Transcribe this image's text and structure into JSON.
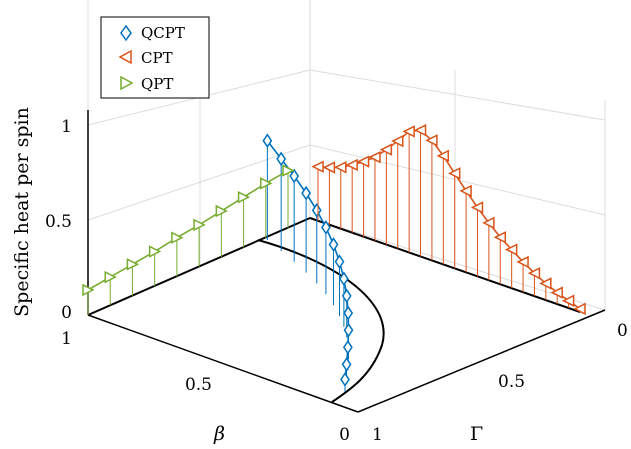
{
  "chart_data": {
    "type": "line",
    "projection": "3d",
    "axes": {
      "beta": {
        "label": "β",
        "ticks": [
          "0",
          "0.5",
          "1"
        ],
        "range": [
          0,
          1
        ]
      },
      "gamma": {
        "label": "Γ",
        "ticks": [
          "0",
          "0.5",
          "1"
        ],
        "range": [
          0,
          1
        ]
      },
      "z": {
        "label": "Specific heat per spin",
        "ticks": [
          "0",
          "0.5",
          "1"
        ],
        "range": [
          0,
          1.25
        ]
      }
    },
    "grid": true,
    "legend_placement": "top-left",
    "legend": [
      "QCPT",
      "CPT",
      "QPT"
    ],
    "series": [
      {
        "name": "QCPT",
        "color": "#0072BD",
        "marker": "diamond",
        "points": [
          {
            "x": 1.14,
            "y": 0.12
          },
          {
            "x": 1.16,
            "y": 0.16
          },
          {
            "x": 1.19,
            "y": 0.22
          },
          {
            "x": 1.21,
            "y": 0.28
          },
          {
            "x": 1.22,
            "y": 0.34
          },
          {
            "x": 1.22,
            "y": 0.4
          },
          {
            "x": 1.21,
            "y": 0.46
          },
          {
            "x": 1.19,
            "y": 0.52
          },
          {
            "x": 1.17,
            "y": 0.58
          },
          {
            "x": 1.13,
            "y": 0.64
          },
          {
            "x": 1.09,
            "y": 0.7
          },
          {
            "x": 1.05,
            "y": 0.76
          },
          {
            "x": 1.0,
            "y": 0.82
          },
          {
            "x": 0.95,
            "y": 0.88
          },
          {
            "x": 0.89,
            "y": 0.95
          }
        ]
      },
      {
        "name": "CPT",
        "color": "#D95319",
        "marker": "triangle-left",
        "points": [
          {
            "x": 0.02,
            "y": 0.03
          },
          {
            "x": 0.04,
            "y": 0.07
          },
          {
            "x": 0.06,
            "y": 0.11
          },
          {
            "x": 0.08,
            "y": 0.16
          },
          {
            "x": 0.1,
            "y": 0.22
          },
          {
            "x": 0.12,
            "y": 0.29
          },
          {
            "x": 0.14,
            "y": 0.37
          },
          {
            "x": 0.16,
            "y": 0.45
          },
          {
            "x": 0.18,
            "y": 0.55
          },
          {
            "x": 0.2,
            "y": 0.66
          },
          {
            "x": 0.22,
            "y": 0.78
          },
          {
            "x": 0.24,
            "y": 0.91
          },
          {
            "x": 0.26,
            "y": 1.04
          },
          {
            "x": 0.28,
            "y": 1.15
          },
          {
            "x": 0.3,
            "y": 1.21
          },
          {
            "x": 0.32,
            "y": 1.16
          },
          {
            "x": 0.34,
            "y": 1.03
          },
          {
            "x": 0.36,
            "y": 0.91
          },
          {
            "x": 0.38,
            "y": 0.8
          },
          {
            "x": 0.4,
            "y": 0.72
          },
          {
            "x": 0.42,
            "y": 0.65
          },
          {
            "x": 0.44,
            "y": 0.59
          },
          {
            "x": 0.46,
            "y": 0.55
          },
          {
            "x": 0.48,
            "y": 0.52
          }
        ]
      },
      {
        "name": "QPT",
        "color": "#77AC30",
        "marker": "triangle-right",
        "points": [
          {
            "x": 1.0,
            "y": 0.24
          },
          {
            "x": 0.9,
            "y": 0.27
          },
          {
            "x": 0.8,
            "y": 0.3
          },
          {
            "x": 0.7,
            "y": 0.33
          },
          {
            "x": 0.6,
            "y": 0.37
          },
          {
            "x": 0.5,
            "y": 0.4
          },
          {
            "x": 0.4,
            "y": 0.44
          },
          {
            "x": 0.3,
            "y": 0.48
          },
          {
            "x": 0.2,
            "y": 0.52
          },
          {
            "x": 0.1,
            "y": 0.55
          }
        ]
      }
    ]
  }
}
